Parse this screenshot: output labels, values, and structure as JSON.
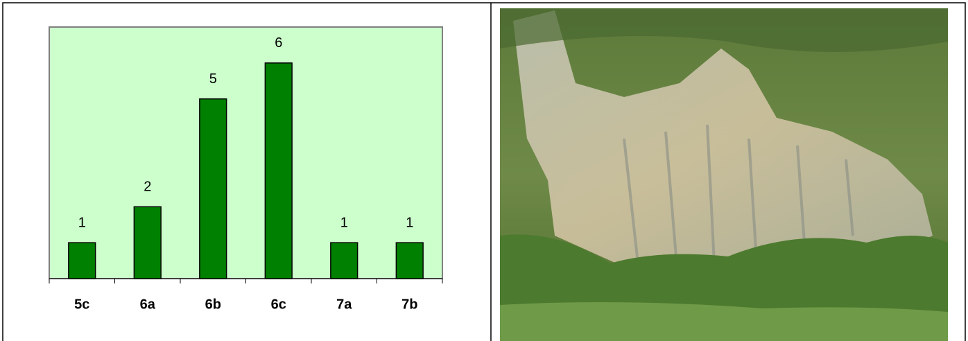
{
  "chart_data": {
    "type": "bar",
    "categories": [
      "5c",
      "6a",
      "6b",
      "6c",
      "7a",
      "7b"
    ],
    "values": [
      1,
      2,
      5,
      6,
      1,
      1
    ],
    "color": "#008000",
    "background": "#ccffcc",
    "ylim": [
      0,
      7
    ]
  }
}
